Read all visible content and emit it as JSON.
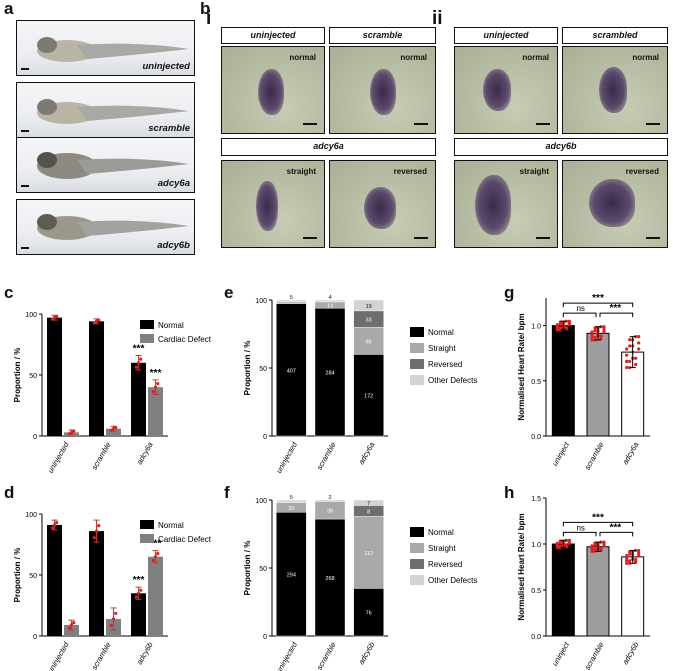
{
  "panel_labels": {
    "a": "a",
    "b": "b",
    "c": "c",
    "d": "d",
    "e": "e",
    "f": "f",
    "g": "g",
    "h": "h",
    "i": "i",
    "ii": "ii"
  },
  "fish_labels": [
    "uninjected",
    "scramble",
    "adcy6a",
    "adcy6b"
  ],
  "b_i": {
    "headers": [
      "uninjected",
      "scramble"
    ],
    "sub_header": "adcy6a",
    "tags": [
      "normal",
      "normal",
      "straight",
      "reversed"
    ]
  },
  "b_ii": {
    "headers": [
      "uninjected",
      "scrambled"
    ],
    "sub_header": "adcy6b",
    "tags": [
      "normal",
      "normal",
      "straight",
      "reversed"
    ]
  },
  "colors": {
    "normal": "#000000",
    "defect": "#808080",
    "straight": "#a9a9a9",
    "reversed": "#6e6e6e",
    "other": "#d3d3d3",
    "error": "#c0392b",
    "dots": "#e02020"
  },
  "chart_data": [
    {
      "id": "c",
      "type": "bar",
      "ylabel": "Proportion / %",
      "ylim": [
        0,
        100
      ],
      "yticks": [
        0,
        50,
        100
      ],
      "categories": [
        "uninjected",
        "scramble",
        "adcy6a"
      ],
      "series": [
        {
          "name": "Normal",
          "values": [
            97,
            94,
            60
          ],
          "err": [
            2,
            2,
            6
          ]
        },
        {
          "name": "Cardiac Defect",
          "values": [
            3,
            6,
            40
          ],
          "err": [
            2,
            2,
            6
          ]
        }
      ],
      "annotations": [
        "***",
        "***"
      ]
    },
    {
      "id": "d",
      "type": "bar",
      "ylabel": "Proportion / %",
      "ylim": [
        0,
        100
      ],
      "yticks": [
        0,
        50,
        100
      ],
      "categories": [
        "uninjected",
        "scramble",
        "adcy6b"
      ],
      "series": [
        {
          "name": "Normal",
          "values": [
            91,
            86,
            35
          ],
          "err": [
            4,
            9,
            5
          ]
        },
        {
          "name": "Cardiac Defect",
          "values": [
            9,
            14,
            65
          ],
          "err": [
            4,
            9,
            5
          ]
        }
      ],
      "annotations": [
        "***",
        "***"
      ]
    },
    {
      "id": "e",
      "type": "bar",
      "stacked": true,
      "ylabel": "Proportion / %",
      "ylim": [
        0,
        100
      ],
      "yticks": [
        0,
        50,
        100
      ],
      "categories": [
        "uninjected",
        "scramble",
        "adcy6a"
      ],
      "series": [
        {
          "name": "Normal",
          "values": [
            97.3,
            94,
            60
          ],
          "labels": [
            "407",
            "284",
            "172"
          ]
        },
        {
          "name": "Straight",
          "values": [
            1.3,
            4.6,
            20
          ],
          "labels": [
            "",
            "14",
            "66"
          ]
        },
        {
          "name": "Reversed",
          "values": [
            0.2,
            0.1,
            12
          ],
          "labels": [
            "",
            "",
            "33"
          ]
        },
        {
          "name": "Other Defects",
          "values": [
            1.2,
            1.3,
            8
          ],
          "labels": [
            "5",
            "4",
            "19"
          ]
        }
      ]
    },
    {
      "id": "f",
      "type": "bar",
      "stacked": true,
      "ylabel": "Proportion / %",
      "ylim": [
        0,
        100
      ],
      "yticks": [
        0,
        50,
        100
      ],
      "categories": [
        "uninjected",
        "scramble",
        "adcy6b"
      ],
      "series": [
        {
          "name": "Normal",
          "values": [
            91,
            86,
            35
          ],
          "labels": [
            "294",
            "268",
            "76"
          ]
        },
        {
          "name": "Straight",
          "values": [
            7,
            13,
            53
          ],
          "labels": [
            "20",
            "38",
            "112"
          ]
        },
        {
          "name": "Reversed",
          "values": [
            0.5,
            0.2,
            8
          ],
          "labels": [
            "",
            "",
            "8"
          ]
        },
        {
          "name": "Other Defects",
          "values": [
            1.5,
            0.8,
            4
          ],
          "labels": [
            "5",
            "2",
            "7"
          ]
        }
      ]
    },
    {
      "id": "g",
      "type": "bar",
      "ylabel": "Normalised Heart Rate/ bpm",
      "ylim": [
        0,
        1.25
      ],
      "yticks": [
        "0.0",
        "0.5",
        "1.0"
      ],
      "categories": [
        "uninject",
        "scramble",
        "adcy6a"
      ],
      "values": [
        1.0,
        0.93,
        0.76
      ],
      "err": [
        0.04,
        0.06,
        0.14
      ],
      "annotations": [
        "***",
        "ns",
        "***"
      ]
    },
    {
      "id": "h",
      "type": "bar",
      "ylabel": "Normalised Heart Rate/ bpm",
      "ylim": [
        0,
        1.5
      ],
      "yticks": [
        "0.0",
        "0.5",
        "1.0",
        "1.5"
      ],
      "categories": [
        "uninject",
        "scramble",
        "adcy6b"
      ],
      "values": [
        1.0,
        0.97,
        0.86
      ],
      "err": [
        0.04,
        0.05,
        0.07
      ],
      "annotations": [
        "***",
        "ns",
        "***"
      ]
    }
  ]
}
